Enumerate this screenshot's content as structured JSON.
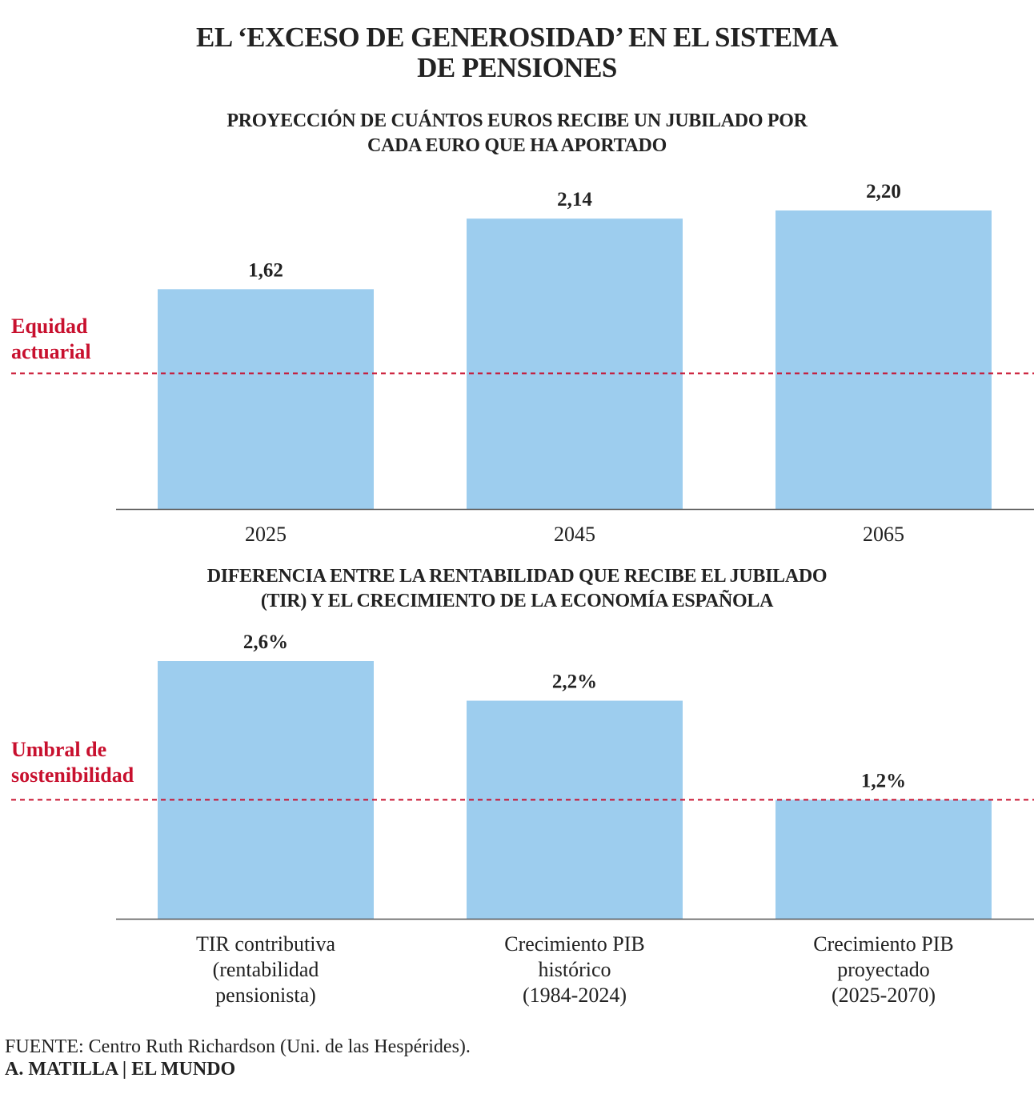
{
  "title_lines": [
    "EL ‘EXCESO DE GENEROSIDAD’ EN EL SISTEMA",
    "DE PENSIONES"
  ],
  "colors": {
    "bar": "#9dcdee",
    "reference": "#c8102e",
    "axis": "#555555",
    "text": "#222222"
  },
  "chart_data": [
    {
      "type": "bar",
      "title_lines": [
        "PROYECCIÓN DE CUÁNTOS EUROS RECIBE UN JUBILADO POR",
        "CADA EURO QUE HA APORTADO"
      ],
      "categories": [
        [
          "2025"
        ],
        [
          "2045"
        ],
        [
          "2065"
        ]
      ],
      "values": [
        1.62,
        2.14,
        2.2
      ],
      "value_labels": [
        "1,62",
        "2,14",
        "2,20"
      ],
      "ylim": [
        0,
        2.2
      ],
      "reference_line": {
        "value": 1.0,
        "label_lines": [
          "Equidad",
          "actuarial"
        ]
      },
      "xlabel": "",
      "ylabel": "",
      "grid": false
    },
    {
      "type": "bar",
      "title_lines": [
        "DIFERENCIA ENTRE LA RENTABILIDAD QUE RECIBE EL JUBILADO",
        "(TIR) Y EL CRECIMIENTO DE LA ECONOMÍA ESPAÑOLA"
      ],
      "categories": [
        [
          "TIR contributiva",
          "(rentabilidad",
          "pensionista)"
        ],
        [
          "Crecimiento PIB",
          "histórico",
          "(1984-2024)"
        ],
        [
          "Crecimiento PIB",
          "proyectado",
          "(2025-2070)"
        ]
      ],
      "values": [
        2.6,
        2.2,
        1.2
      ],
      "value_labels": [
        "2,6%",
        "2,2%",
        "1,2%"
      ],
      "ylim": [
        0,
        2.6
      ],
      "reference_line": {
        "value": 1.2,
        "label_lines": [
          "Umbral de",
          "sostenibilidad"
        ]
      },
      "xlabel": "",
      "ylabel": "",
      "grid": false
    }
  ],
  "source": "FUENTE: Centro Ruth Richardson (Uni. de las Hespérides).",
  "credit": "A. MATILLA | EL MUNDO"
}
